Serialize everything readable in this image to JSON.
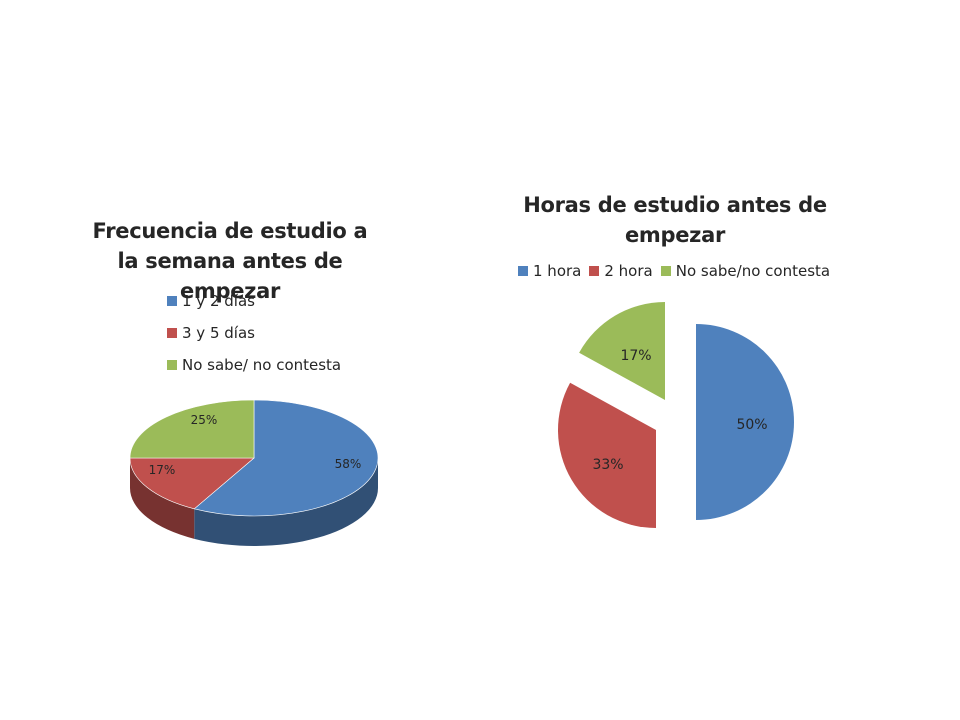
{
  "chart_data": [
    {
      "type": "pie",
      "title": "Frecuencia de estudio a la semana antes de empezar",
      "categories": [
        "1 y 2 días",
        "3 y 5 días",
        "No sabe/ no contesta"
      ],
      "values": [
        58,
        17,
        25
      ],
      "labels": [
        "58%",
        "17%",
        "25%"
      ],
      "colors": [
        "#4F81BD",
        "#C0504D",
        "#9BBB59"
      ],
      "legend": "right"
    },
    {
      "type": "pie",
      "title": "Horas de estudio antes de empezar",
      "categories": [
        "1 hora",
        "2 hora",
        "No sabe/no contesta"
      ],
      "values": [
        50,
        33,
        17
      ],
      "labels": [
        "50%",
        "33%",
        "17%"
      ],
      "colors": [
        "#4F81BD",
        "#C0504D",
        "#9BBB59"
      ],
      "legend": "top"
    }
  ]
}
